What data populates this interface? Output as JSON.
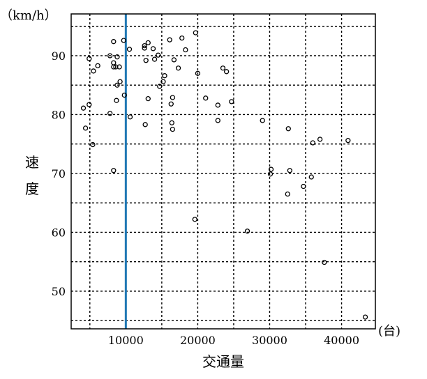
{
  "chart_data": {
    "type": "scatter",
    "title": "",
    "xlabel": "交通量",
    "xunit": "(台)",
    "ylabel": "速度",
    "yunit": "（km/h）",
    "xlim": [
      2400,
      44700
    ],
    "ylim": [
      43.6,
      97.1
    ],
    "xticks": [
      10000,
      20000,
      30000,
      40000
    ],
    "yticks": [
      50,
      60,
      70,
      80,
      90
    ],
    "grid": {
      "on": true,
      "style": "dashed",
      "x_step": 5000,
      "y_step": 5
    },
    "reference_line": {
      "x": 10000,
      "color": "#1f77b4"
    },
    "marker": "open-circle",
    "points": [
      [
        4100,
        81.1
      ],
      [
        4400,
        77.7
      ],
      [
        4900,
        81.7
      ],
      [
        4900,
        89.5
      ],
      [
        5400,
        74.9
      ],
      [
        5500,
        87.4
      ],
      [
        6100,
        88.3
      ],
      [
        7800,
        90.0
      ],
      [
        8300,
        92.4
      ],
      [
        8300,
        88.1
      ],
      [
        8300,
        88.8
      ],
      [
        8600,
        88.1
      ],
      [
        8300,
        70.5
      ],
      [
        8700,
        82.4
      ],
      [
        8800,
        85.0
      ],
      [
        9200,
        85.6
      ],
      [
        9100,
        88.1
      ],
      [
        8800,
        89.8
      ],
      [
        7800,
        80.2
      ],
      [
        9800,
        83.3
      ],
      [
        9700,
        92.6
      ],
      [
        10500,
        91.1
      ],
      [
        10600,
        79.6
      ],
      [
        12600,
        91.3
      ],
      [
        12600,
        91.7
      ],
      [
        13100,
        92.2
      ],
      [
        12800,
        89.2
      ],
      [
        13100,
        82.7
      ],
      [
        12700,
        78.3
      ],
      [
        14000,
        89.4
      ],
      [
        13800,
        91.2
      ],
      [
        14500,
        90.1
      ],
      [
        14700,
        84.8
      ],
      [
        15200,
        85.6
      ],
      [
        15400,
        86.6
      ],
      [
        16100,
        92.7
      ],
      [
        16300,
        81.8
      ],
      [
        16500,
        82.9
      ],
      [
        16400,
        78.6
      ],
      [
        16500,
        77.5
      ],
      [
        16700,
        89.3
      ],
      [
        17300,
        87.9
      ],
      [
        17800,
        93.0
      ],
      [
        18300,
        91.0
      ],
      [
        19700,
        93.9
      ],
      [
        20000,
        87.0
      ],
      [
        21100,
        82.8
      ],
      [
        19600,
        62.2
      ],
      [
        22800,
        81.6
      ],
      [
        22800,
        79.0
      ],
      [
        23500,
        87.9
      ],
      [
        24000,
        87.3
      ],
      [
        24700,
        82.2
      ],
      [
        26900,
        60.2
      ],
      [
        29000,
        79.0
      ],
      [
        30200,
        70.7
      ],
      [
        30100,
        69.9
      ],
      [
        32600,
        77.6
      ],
      [
        32800,
        70.5
      ],
      [
        32500,
        66.5
      ],
      [
        34700,
        67.8
      ],
      [
        35800,
        69.4
      ],
      [
        36000,
        75.2
      ],
      [
        37000,
        75.8
      ],
      [
        37600,
        54.9
      ],
      [
        40900,
        75.6
      ],
      [
        43300,
        45.6
      ]
    ]
  }
}
